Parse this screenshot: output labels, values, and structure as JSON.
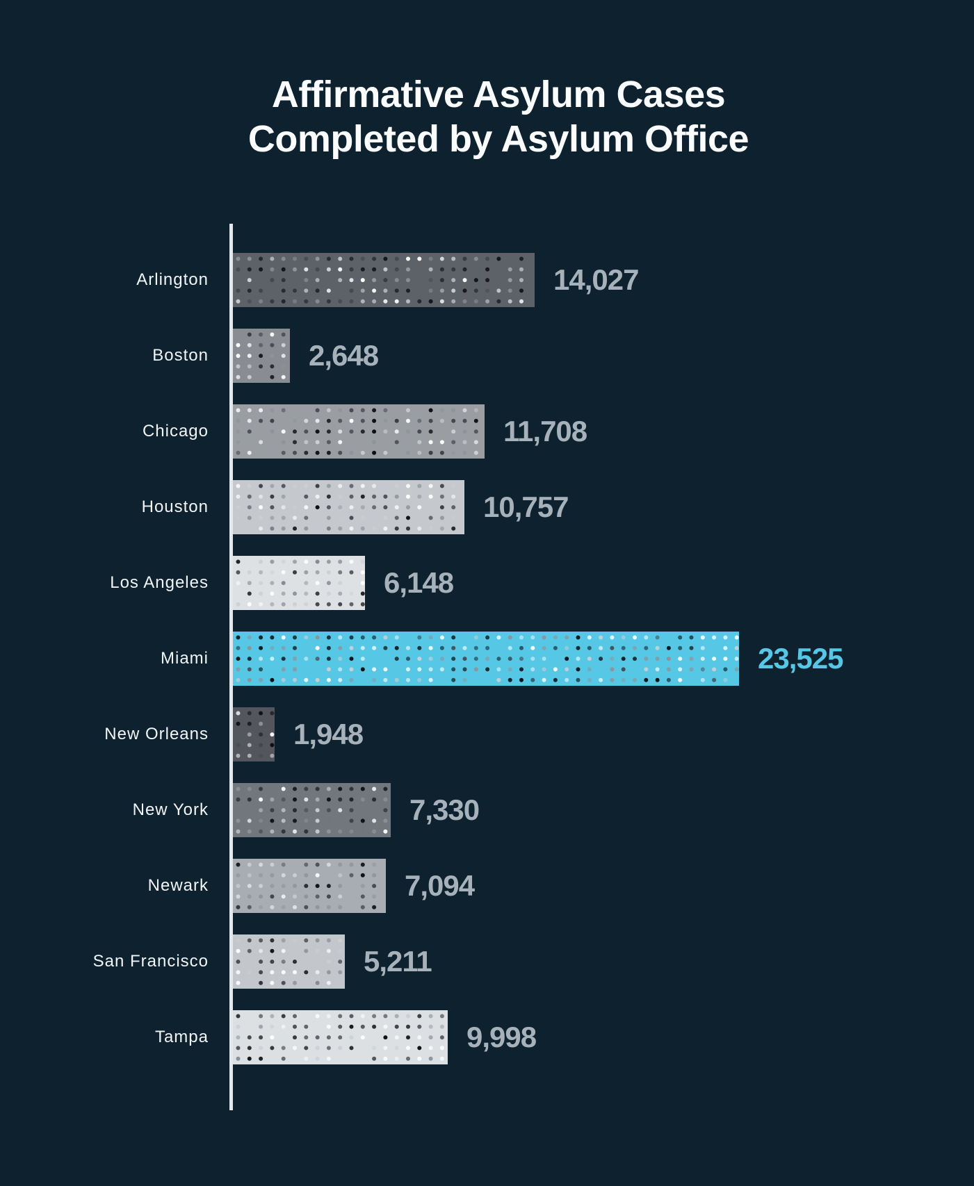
{
  "title": {
    "line1": "Affirmative Asylum Cases",
    "line2": "Completed by Asylum Office"
  },
  "chart_data": {
    "type": "bar",
    "orientation": "horizontal",
    "title": "Affirmative Asylum Cases Completed by Asylum Office",
    "categories": [
      "Arlington",
      "Boston",
      "Chicago",
      "Houston",
      "Los Angeles",
      "Miami",
      "New Orleans",
      "New York",
      "Newark",
      "San Francisco",
      "Tampa"
    ],
    "values": [
      14027,
      2648,
      11708,
      10757,
      6148,
      23525,
      1948,
      7330,
      7094,
      5211,
      9998
    ],
    "value_labels": [
      "14,027",
      "2,648",
      "11,708",
      "10,757",
      "6,148",
      "23,525",
      "1,948",
      "7,330",
      "7,094",
      "5,211",
      "9,998"
    ],
    "xlim": [
      0,
      23525
    ],
    "max_value": 23525,
    "grid": false,
    "legend": "none",
    "highlight_category": "Miami",
    "highlight_index": 5,
    "bar_colors": [
      "#5d6268",
      "#898d93",
      "#9a9ea3",
      "#c5c9ce",
      "#dde1e4",
      "#57c7e6",
      "#53575d",
      "#71777d",
      "#a8adb3",
      "#c3c7cc",
      "#dce0e3"
    ],
    "highlight_color": "#57c7e6",
    "value_label_color": "#a7b1ba",
    "category_label_color": "#f2f5f7",
    "axis_line_color": "#e3e8ec",
    "background_color": "#0d212f",
    "dot_pattern_colors": [
      "#0c0d0f",
      "#ffffff",
      "#cbcfd3",
      "#8e9398",
      "#42464c"
    ]
  }
}
